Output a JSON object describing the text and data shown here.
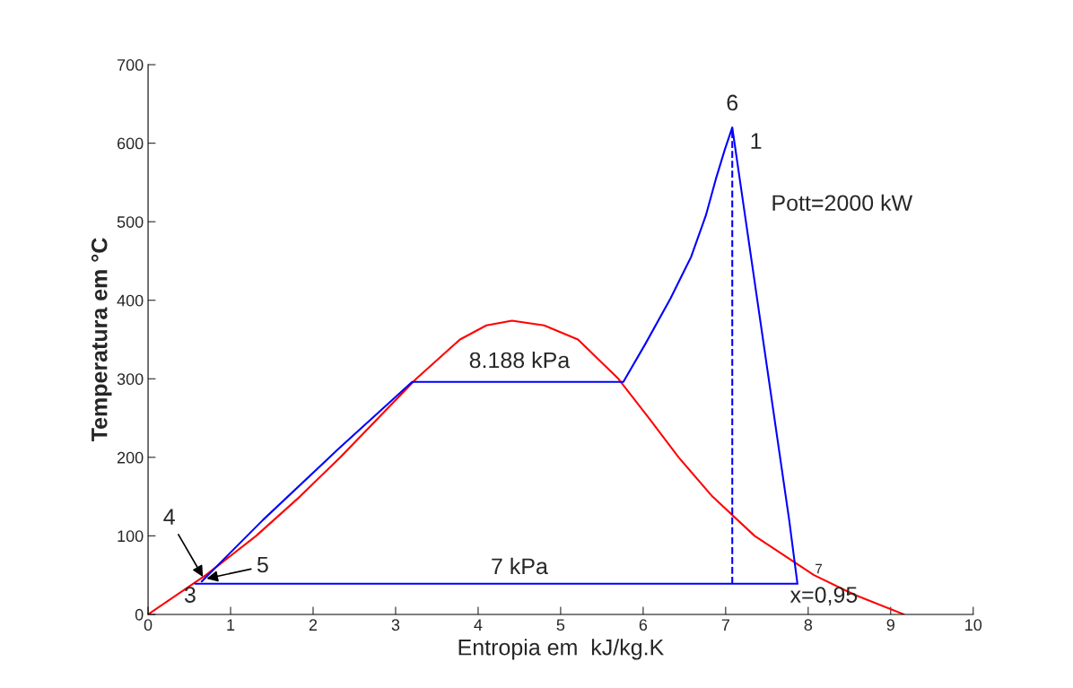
{
  "chart_data": {
    "type": "line",
    "xlabel": "Entropia em  kJ/kg.K",
    "ylabel": "Temperatura em °C",
    "xlim": [
      0,
      10
    ],
    "xticks": [
      0,
      1,
      2,
      3,
      4,
      5,
      6,
      7,
      8,
      9,
      10
    ],
    "ylim": [
      0,
      700
    ],
    "yticks": [
      0,
      100,
      200,
      300,
      400,
      500,
      600,
      700
    ],
    "grid": false,
    "legend": false,
    "series": [
      {
        "color": "#ff0000",
        "x": [
          0,
          0.7,
          1.31,
          1.84,
          2.33,
          2.79,
          3.25,
          3.78,
          4.1,
          4.41,
          4.8,
          5.21,
          5.7,
          6.07,
          6.43,
          6.84,
          7.35,
          8.07,
          8.56,
          9.16
        ],
        "values": [
          0,
          50,
          100,
          150,
          200,
          250,
          300,
          350,
          368,
          374,
          368,
          350,
          300,
          250,
          200,
          150,
          100,
          50,
          25,
          0
        ]
      },
      {
        "color": "#0000ff",
        "x": [
          0.65,
          1.39,
          2.3,
          3.2,
          5.76,
          6.03,
          6.33,
          6.58,
          6.76,
          6.88,
          6.99,
          7.08,
          7.77,
          7.87,
          0.57
        ],
        "values": [
          42,
          120,
          210,
          296,
          296,
          345,
          402,
          455,
          508,
          554,
          592,
          620,
          120,
          39,
          39
        ]
      },
      {
        "color": "#0000ff",
        "line_style": "dashed",
        "x": [
          7.08,
          7.08
        ],
        "values": [
          39,
          620
        ]
      }
    ],
    "annotations": [
      {
        "text": "6",
        "x": 7.08,
        "y": 620
      },
      {
        "text": "1",
        "x": 7.08,
        "y": 620
      },
      "Pott=2000 kW",
      "8.188 kPa",
      "7 kPa",
      {
        "text": "x=0,95",
        "x": 7.87,
        "y": 39
      },
      {
        "text": "7",
        "x": 7.87,
        "y": 39
      },
      {
        "text": "4",
        "x": 0.68,
        "y": 45
      },
      {
        "text": "5",
        "x": 0.68,
        "y": 45
      },
      {
        "text": "3",
        "x": 0.57,
        "y": 39
      }
    ]
  }
}
